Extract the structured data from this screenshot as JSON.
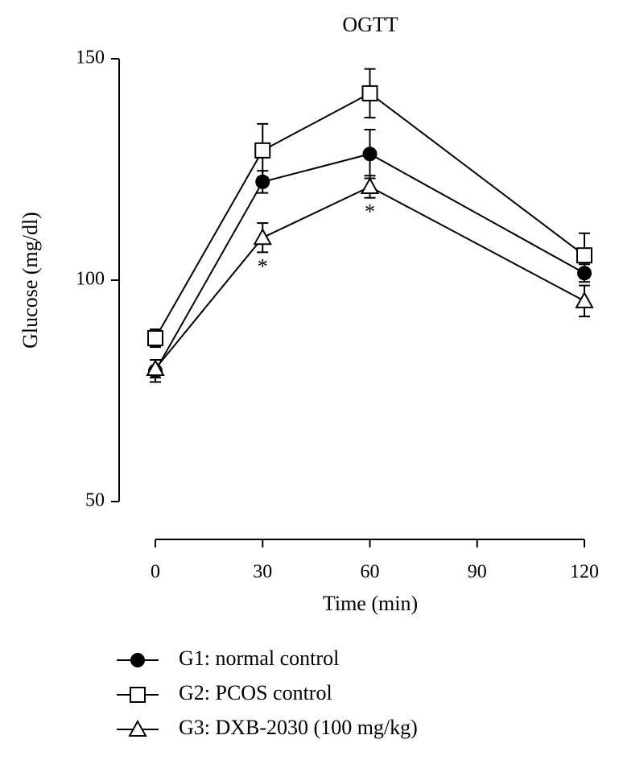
{
  "chart_data": {
    "type": "line",
    "title": "OGTT",
    "x_label": "Time (min)",
    "y_label": "Glucose (mg/dl)",
    "x": [
      0,
      30,
      60,
      120
    ],
    "xlim": [
      0,
      120
    ],
    "xticks": [
      0,
      30,
      60,
      90,
      120
    ],
    "ylim": [
      50,
      150
    ],
    "yticks": [
      50,
      100,
      150
    ],
    "series": [
      {
        "name": "G1: normal control",
        "color": "#000000",
        "marker": "circle",
        "filled": true,
        "values": [
          79.5,
          122.2,
          128.5,
          101.6
        ],
        "errors": [
          2.5,
          2.5,
          5.5,
          2
        ]
      },
      {
        "name": "G2: PCOS control",
        "color": "#000000",
        "marker": "square",
        "filled": false,
        "values": [
          86.9,
          129.3,
          142.2,
          105.6
        ],
        "errors": [
          2,
          6,
          5.5,
          5
        ]
      },
      {
        "name": "G3: DXB-2030 (100 mg/kg)",
        "color": "#000000",
        "marker": "triangle",
        "filled": false,
        "values": [
          80,
          109.6,
          121.1,
          95.3
        ],
        "errors": [
          2,
          3.3,
          2.5,
          3.5
        ]
      }
    ],
    "annotations": [
      {
        "text": "*",
        "x": 30
      },
      {
        "text": "*",
        "x": 60
      }
    ]
  }
}
